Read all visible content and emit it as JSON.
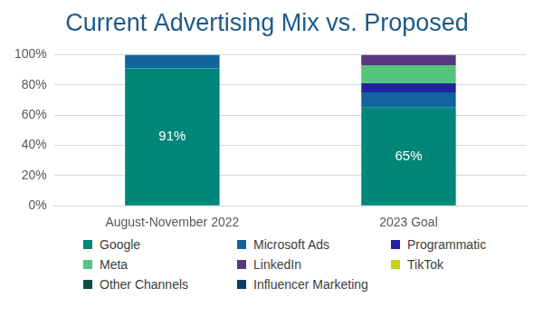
{
  "chart_data": {
    "type": "bar",
    "title": "Current Advertising Mix vs. Proposed",
    "categories": [
      "August-November 2022",
      "2023 Goal"
    ],
    "stacked": true,
    "grid": true,
    "legend": "bottom",
    "ylim": [
      0,
      100
    ],
    "yticks": [
      {
        "value": 0,
        "label": "0%"
      },
      {
        "value": 20,
        "label": "20%"
      },
      {
        "value": 40,
        "label": "40%"
      },
      {
        "value": 60,
        "label": "60%"
      },
      {
        "value": 80,
        "label": "80%"
      },
      {
        "value": 100,
        "label": "100%"
      }
    ],
    "series": [
      {
        "name": "Google",
        "color": "#00877a",
        "values": [
          91,
          65
        ],
        "data_labels": true,
        "value_labels": [
          "91%",
          "65%"
        ]
      },
      {
        "name": "Microsoft Ads",
        "color": "#11649e",
        "values": [
          9,
          10
        ]
      },
      {
        "name": "Programmatic",
        "color": "#2222a0",
        "values": [
          0,
          6
        ]
      },
      {
        "name": "Meta",
        "color": "#55c47c",
        "values": [
          0,
          12
        ]
      },
      {
        "name": "LinkedIn",
        "color": "#5a3680",
        "values": [
          0,
          7
        ]
      },
      {
        "name": "TikTok",
        "color": "#c5d31a",
        "values": [
          0,
          0
        ]
      },
      {
        "name": "Other Channels",
        "color": "#0d4f40",
        "values": [
          0,
          0
        ]
      },
      {
        "name": "Influencer Marketing",
        "color": "#0e3c5e",
        "values": [
          0,
          0
        ]
      }
    ]
  }
}
